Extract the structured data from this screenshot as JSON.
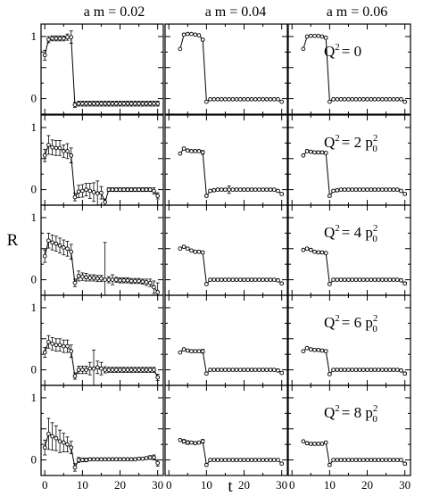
{
  "chart_data": {
    "type": "line",
    "xlabel": "t",
    "ylabel": "R",
    "xlim": [
      -1,
      31.5
    ],
    "ylim": [
      -0.25,
      1.2
    ],
    "xticks": [
      "0",
      "10",
      "20",
      "30"
    ],
    "yticks": [
      "0",
      "0.5",
      "1"
    ],
    "grid": false,
    "columns": [
      {
        "label": "a m = 0.02"
      },
      {
        "label": "a m = 0.04"
      },
      {
        "label": "a m = 0.06"
      }
    ],
    "rows": [
      {
        "label": {
          "lhs": "Q",
          "lhs_sup": "2",
          "rhs": "= 0",
          "rhs_sup": "",
          "p0": false
        }
      },
      {
        "label": {
          "lhs": "Q",
          "lhs_sup": "2",
          "rhs": "= 2 p",
          "rhs_sup": "2",
          "p0": true
        }
      },
      {
        "label": {
          "lhs": "Q",
          "lhs_sup": "2",
          "rhs": "= 4 p",
          "rhs_sup": "2",
          "p0": true
        }
      },
      {
        "label": {
          "lhs": "Q",
          "lhs_sup": "2",
          "rhs": "= 6 p",
          "rhs_sup": "2",
          "p0": true
        }
      },
      {
        "label": {
          "lhs": "Q",
          "lhs_sup": "2",
          "rhs": "= 8 p",
          "rhs_sup": "2",
          "p0": true
        }
      }
    ],
    "panels": [
      {
        "row": 0,
        "col": 0,
        "values": [
          0.7,
          0.95,
          0.97,
          0.97,
          0.97,
          0.97,
          0.99,
          0.99,
          -0.1,
          -0.08,
          -0.08,
          -0.08,
          -0.08,
          -0.08,
          -0.08,
          -0.08,
          -0.08,
          -0.08,
          -0.08,
          -0.08,
          -0.08,
          -0.08,
          -0.08,
          -0.08,
          -0.08,
          -0.08,
          -0.08,
          -0.08,
          -0.08,
          -0.08,
          -0.08
        ],
        "errors": [
          0.08,
          0.05,
          0.04,
          0.04,
          0.04,
          0.04,
          0.05,
          0.1,
          0.04,
          0.04,
          0.04,
          0.04,
          0.04,
          0.04,
          0.04,
          0.04,
          0.04,
          0.04,
          0.04,
          0.04,
          0.04,
          0.04,
          0.04,
          0.04,
          0.04,
          0.04,
          0.04,
          0.04,
          0.04,
          0.04,
          0.04
        ]
      },
      {
        "row": 0,
        "col": 1,
        "values": [
          null,
          null,
          null,
          0.8,
          1.03,
          1.04,
          1.04,
          1.03,
          1.02,
          0.95,
          -0.05,
          -0.01,
          -0.01,
          -0.01,
          -0.01,
          -0.01,
          -0.01,
          -0.01,
          -0.01,
          -0.01,
          -0.01,
          -0.01,
          -0.01,
          -0.01,
          -0.01,
          -0.01,
          -0.01,
          -0.01,
          -0.01,
          -0.01,
          -0.05
        ],
        "errors": [
          0,
          0,
          0,
          0,
          0.01,
          0.01,
          0.01,
          0.01,
          0.01,
          0.02,
          0.01,
          0.01,
          0.01,
          0.01,
          0.01,
          0.01,
          0.01,
          0.01,
          0.01,
          0.01,
          0.01,
          0.01,
          0.01,
          0.01,
          0.01,
          0.01,
          0.01,
          0.01,
          0.01,
          0.01,
          0.01
        ]
      },
      {
        "row": 0,
        "col": 2,
        "values": [
          null,
          null,
          null,
          0.8,
          1.0,
          1.01,
          1.01,
          1.01,
          1.0,
          0.98,
          -0.05,
          -0.01,
          -0.01,
          -0.01,
          -0.01,
          -0.01,
          -0.01,
          -0.01,
          -0.01,
          -0.01,
          -0.01,
          -0.01,
          -0.01,
          -0.01,
          -0.01,
          -0.01,
          -0.01,
          -0.01,
          -0.01,
          -0.01,
          -0.05
        ],
        "errors": [
          0,
          0,
          0,
          0,
          0.01,
          0.01,
          0.01,
          0.01,
          0.01,
          0.02,
          0.01,
          0.01,
          0.01,
          0.01,
          0.01,
          0.01,
          0.01,
          0.01,
          0.01,
          0.01,
          0.01,
          0.01,
          0.01,
          0.01,
          0.01,
          0.01,
          0.01,
          0.01,
          0.01,
          0.01,
          0.01
        ]
      },
      {
        "row": 1,
        "col": 0,
        "values": [
          0.55,
          0.72,
          0.68,
          0.67,
          0.67,
          0.62,
          0.62,
          0.55,
          -0.12,
          -0.03,
          -0.02,
          0.0,
          -0.02,
          -0.04,
          -0.06,
          -0.05,
          -0.2,
          0.0,
          0.0,
          0.0,
          0.0,
          0.0,
          0.0,
          0.0,
          0.0,
          0.0,
          0.0,
          0.0,
          0.0,
          -0.02,
          -0.1
        ],
        "errors": [
          0.1,
          0.15,
          0.12,
          0.12,
          0.12,
          0.1,
          0.12,
          0.12,
          0.06,
          0.1,
          0.1,
          0.1,
          0.12,
          0.15,
          0.2,
          0.1,
          0.05,
          0.03,
          0.03,
          0.03,
          0.03,
          0.03,
          0.03,
          0.03,
          0.03,
          0.03,
          0.03,
          0.03,
          0.03,
          0.05,
          0.05
        ]
      },
      {
        "row": 1,
        "col": 1,
        "values": [
          null,
          null,
          null,
          0.58,
          0.66,
          0.63,
          0.62,
          0.62,
          0.62,
          0.6,
          -0.1,
          -0.02,
          -0.01,
          0.0,
          0.0,
          0.0,
          0.0,
          0.0,
          0.0,
          0.0,
          0.0,
          0.0,
          0.0,
          0.0,
          0.0,
          0.0,
          0.0,
          0.0,
          0.0,
          -0.02,
          -0.07
        ],
        "errors": [
          0,
          0,
          0,
          0,
          0.02,
          0.02,
          0.02,
          0.02,
          0.02,
          0.03,
          0.02,
          0.02,
          0.02,
          0.02,
          0.02,
          0.02,
          0.06,
          0.02,
          0.02,
          0.02,
          0.02,
          0.02,
          0.02,
          0.02,
          0.02,
          0.02,
          0.02,
          0.02,
          0.02,
          0.02,
          0.02
        ]
      },
      {
        "row": 1,
        "col": 2,
        "values": [
          null,
          null,
          null,
          0.55,
          0.62,
          0.61,
          0.6,
          0.6,
          0.6,
          0.59,
          -0.1,
          -0.02,
          -0.01,
          0.0,
          0.0,
          0.0,
          0.0,
          0.0,
          0.0,
          0.0,
          0.0,
          0.0,
          0.0,
          0.0,
          0.0,
          0.0,
          0.0,
          0.0,
          0.0,
          -0.02,
          -0.07
        ],
        "errors": [
          0,
          0,
          0,
          0,
          0.02,
          0.02,
          0.02,
          0.02,
          0.02,
          0.02,
          0.02,
          0.02,
          0.02,
          0.02,
          0.02,
          0.02,
          0.02,
          0.02,
          0.02,
          0.02,
          0.02,
          0.02,
          0.02,
          0.02,
          0.02,
          0.02,
          0.02,
          0.02,
          0.02,
          0.02,
          0.02
        ]
      },
      {
        "row": 2,
        "col": 0,
        "values": [
          0.38,
          0.63,
          0.6,
          0.58,
          0.55,
          0.52,
          0.5,
          0.45,
          -0.05,
          0.06,
          0.05,
          0.04,
          0.03,
          0.03,
          0.02,
          0.02,
          0.0,
          0.0,
          0.0,
          0.0,
          -0.01,
          -0.01,
          -0.01,
          -0.02,
          -0.02,
          -0.02,
          -0.03,
          -0.04,
          -0.05,
          -0.12,
          -0.2
        ],
        "errors": [
          0.1,
          0.12,
          0.12,
          0.12,
          0.12,
          0.12,
          0.12,
          0.12,
          0.06,
          0.08,
          0.06,
          0.06,
          0.05,
          0.05,
          0.05,
          0.05,
          0.6,
          0.05,
          0.08,
          0.04,
          0.04,
          0.04,
          0.04,
          0.04,
          0.04,
          0.04,
          0.04,
          0.05,
          0.06,
          0.1,
          0.15
        ]
      },
      {
        "row": 2,
        "col": 1,
        "values": [
          null,
          null,
          null,
          0.5,
          0.53,
          0.5,
          0.47,
          0.45,
          0.45,
          0.44,
          -0.07,
          0.0,
          0.0,
          0.0,
          0.0,
          0.0,
          0.0,
          0.0,
          0.0,
          0.0,
          0.0,
          0.0,
          0.0,
          0.0,
          0.0,
          0.0,
          0.0,
          0.0,
          0.0,
          -0.01,
          -0.06
        ],
        "errors": [
          0,
          0,
          0,
          0,
          0.02,
          0.02,
          0.02,
          0.02,
          0.02,
          0.02,
          0.02,
          0.02,
          0.02,
          0.02,
          0.02,
          0.02,
          0.02,
          0.02,
          0.02,
          0.02,
          0.02,
          0.02,
          0.02,
          0.02,
          0.02,
          0.02,
          0.02,
          0.02,
          0.02,
          0.02,
          0.02
        ]
      },
      {
        "row": 2,
        "col": 2,
        "values": [
          null,
          null,
          null,
          0.48,
          0.5,
          0.48,
          0.45,
          0.44,
          0.44,
          0.43,
          -0.07,
          0.0,
          0.0,
          0.0,
          0.0,
          0.0,
          0.0,
          0.0,
          0.0,
          0.0,
          0.0,
          0.0,
          0.0,
          0.0,
          0.0,
          0.0,
          0.0,
          0.0,
          0.0,
          -0.01,
          -0.06
        ],
        "errors": [
          0,
          0,
          0,
          0,
          0.02,
          0.02,
          0.02,
          0.02,
          0.02,
          0.02,
          0.02,
          0.02,
          0.02,
          0.02,
          0.02,
          0.02,
          0.02,
          0.02,
          0.02,
          0.02,
          0.02,
          0.02,
          0.02,
          0.02,
          0.02,
          0.02,
          0.02,
          0.02,
          0.02,
          0.02,
          0.02
        ]
      },
      {
        "row": 3,
        "col": 0,
        "values": [
          0.28,
          0.45,
          0.42,
          0.4,
          0.4,
          0.38,
          0.38,
          0.3,
          -0.1,
          0.0,
          0.0,
          0.0,
          0.02,
          0.02,
          0.04,
          0.02,
          0.0,
          0.0,
          0.0,
          0.0,
          0.0,
          0.0,
          0.0,
          0.0,
          0.0,
          0.0,
          0.0,
          0.0,
          0.0,
          0.0,
          -0.12
        ],
        "errors": [
          0.08,
          0.1,
          0.1,
          0.1,
          0.1,
          0.1,
          0.1,
          0.1,
          0.05,
          0.06,
          0.06,
          0.06,
          0.1,
          0.3,
          0.1,
          0.1,
          0.05,
          0.04,
          0.04,
          0.04,
          0.04,
          0.04,
          0.04,
          0.04,
          0.04,
          0.04,
          0.04,
          0.04,
          0.04,
          0.04,
          0.05
        ]
      },
      {
        "row": 3,
        "col": 1,
        "values": [
          null,
          null,
          null,
          0.28,
          0.33,
          0.31,
          0.3,
          0.3,
          0.3,
          0.3,
          -0.06,
          0.0,
          0.0,
          0.0,
          0.0,
          0.0,
          0.0,
          0.0,
          0.0,
          0.0,
          0.0,
          0.0,
          0.0,
          0.0,
          0.0,
          0.0,
          0.0,
          0.0,
          0.0,
          -0.01,
          -0.05
        ],
        "errors": [
          0,
          0,
          0,
          0,
          0.02,
          0.02,
          0.02,
          0.02,
          0.02,
          0.03,
          0.02,
          0.02,
          0.02,
          0.02,
          0.02,
          0.02,
          0.02,
          0.02,
          0.02,
          0.02,
          0.02,
          0.02,
          0.02,
          0.02,
          0.02,
          0.02,
          0.02,
          0.02,
          0.02,
          0.02,
          0.02
        ]
      },
      {
        "row": 3,
        "col": 2,
        "values": [
          null,
          null,
          null,
          0.3,
          0.35,
          0.33,
          0.32,
          0.32,
          0.31,
          0.3,
          -0.07,
          0.0,
          0.0,
          0.0,
          0.0,
          0.0,
          0.0,
          0.0,
          0.0,
          0.0,
          0.0,
          0.0,
          0.0,
          0.0,
          0.0,
          0.0,
          0.0,
          0.0,
          0.0,
          -0.01,
          -0.06
        ],
        "errors": [
          0,
          0,
          0,
          0,
          0.02,
          0.02,
          0.02,
          0.02,
          0.02,
          0.02,
          0.02,
          0.02,
          0.02,
          0.02,
          0.02,
          0.02,
          0.02,
          0.02,
          0.02,
          0.02,
          0.02,
          0.02,
          0.02,
          0.02,
          0.02,
          0.02,
          0.02,
          0.02,
          0.02,
          0.02,
          0.02
        ]
      },
      {
        "row": 4,
        "col": 0,
        "values": [
          0.2,
          0.42,
          0.38,
          0.35,
          0.3,
          0.28,
          0.25,
          0.2,
          -0.12,
          0.0,
          0.0,
          0.0,
          0.01,
          0.01,
          0.01,
          0.01,
          0.01,
          0.01,
          0.01,
          0.01,
          0.01,
          0.01,
          0.01,
          0.01,
          0.01,
          0.02,
          0.02,
          0.03,
          0.04,
          0.04,
          -0.05
        ],
        "errors": [
          0.12,
          0.25,
          0.22,
          0.2,
          0.18,
          0.15,
          0.12,
          0.1,
          0.06,
          0.04,
          0.03,
          0.03,
          0.02,
          0.02,
          0.02,
          0.02,
          0.02,
          0.02,
          0.02,
          0.02,
          0.02,
          0.02,
          0.02,
          0.02,
          0.02,
          0.02,
          0.02,
          0.02,
          0.03,
          0.04,
          0.05
        ]
      },
      {
        "row": 4,
        "col": 1,
        "values": [
          null,
          null,
          null,
          0.32,
          0.3,
          0.28,
          0.28,
          0.27,
          0.28,
          0.3,
          -0.08,
          0.0,
          0.0,
          0.0,
          0.0,
          0.0,
          0.0,
          0.0,
          0.0,
          0.0,
          0.0,
          0.0,
          0.0,
          0.0,
          0.0,
          0.0,
          0.0,
          0.0,
          0.0,
          0.0,
          -0.06
        ],
        "errors": [
          0,
          0,
          0,
          0,
          0.03,
          0.03,
          0.02,
          0.02,
          0.02,
          0.03,
          0.02,
          0.02,
          0.02,
          0.02,
          0.02,
          0.02,
          0.02,
          0.02,
          0.02,
          0.02,
          0.02,
          0.02,
          0.02,
          0.02,
          0.02,
          0.02,
          0.02,
          0.02,
          0.02,
          0.02,
          0.02
        ]
      },
      {
        "row": 4,
        "col": 2,
        "values": [
          null,
          null,
          null,
          0.3,
          0.27,
          0.26,
          0.26,
          0.26,
          0.26,
          0.28,
          -0.08,
          0.0,
          0.0,
          0.0,
          0.0,
          0.0,
          0.0,
          0.0,
          0.0,
          0.0,
          0.0,
          0.0,
          0.0,
          0.0,
          0.0,
          0.0,
          0.0,
          0.0,
          0.0,
          0.0,
          -0.06
        ],
        "errors": [
          0,
          0,
          0,
          0,
          0.02,
          0.02,
          0.02,
          0.02,
          0.02,
          0.02,
          0.02,
          0.02,
          0.02,
          0.02,
          0.02,
          0.02,
          0.02,
          0.02,
          0.02,
          0.02,
          0.02,
          0.02,
          0.02,
          0.02,
          0.02,
          0.02,
          0.02,
          0.02,
          0.02,
          0.02,
          0.02
        ]
      }
    ]
  }
}
